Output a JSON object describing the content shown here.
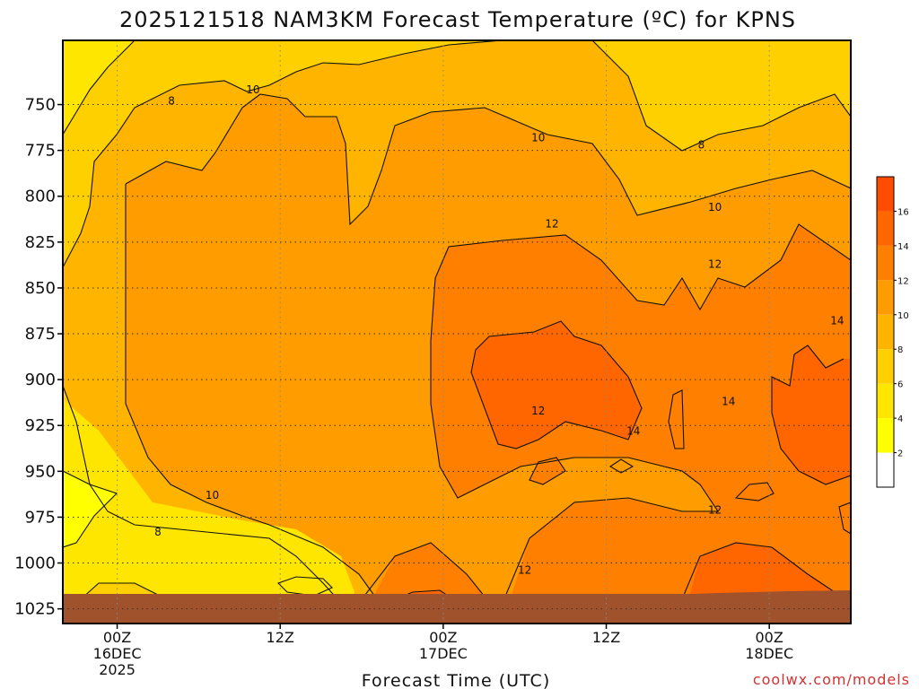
{
  "chart_data": {
    "type": "heatmap",
    "title": "2025121518 NAM3KM Forecast Temperature (ºC) for KPNS",
    "xlabel": "Forecast Time (UTC)",
    "ylabel": "",
    "credit": "coolwx.com/models",
    "x_range_hours": [
      -4,
      54
    ],
    "y_range_hPa": [
      715,
      1033
    ],
    "y_ticks": [
      750,
      775,
      800,
      825,
      850,
      875,
      900,
      925,
      950,
      975,
      1000,
      1025
    ],
    "x_ticks": [
      {
        "hour": 0,
        "lines": [
          "00Z",
          "16DEC",
          "2025"
        ]
      },
      {
        "hour": 12,
        "lines": [
          "12Z"
        ]
      },
      {
        "hour": 24,
        "lines": [
          "00Z",
          "17DEC"
        ]
      },
      {
        "hour": 36,
        "lines": [
          "12Z"
        ]
      },
      {
        "hour": 48,
        "lines": [
          "00Z",
          "18DEC"
        ]
      }
    ],
    "colorbar": {
      "tick_labels": [
        2,
        4,
        6,
        8,
        10,
        12,
        14,
        16
      ],
      "levels": [
        0,
        2,
        4,
        6,
        8,
        10,
        12,
        14,
        16,
        18
      ],
      "colors": [
        "#ffffff",
        "#ffff00",
        "#ffe600",
        "#ffd000",
        "#ffb400",
        "#ff9c00",
        "#ff8000",
        "#ff6600",
        "#ff4c00"
      ]
    },
    "contour_labels": [
      {
        "value": 8,
        "hour": 3,
        "hPa": 983
      },
      {
        "value": 8,
        "hour": 4,
        "hPa": 748
      },
      {
        "value": 10,
        "hour": 7,
        "hPa": 963
      },
      {
        "value": 10,
        "hour": 10,
        "hPa": 742
      },
      {
        "value": 10,
        "hour": 31,
        "hPa": 768
      },
      {
        "value": 8,
        "hour": 43,
        "hPa": 772
      },
      {
        "value": 10,
        "hour": 44,
        "hPa": 806
      },
      {
        "value": 12,
        "hour": 30,
        "hPa": 1004
      },
      {
        "value": 12,
        "hour": 31,
        "hPa": 917
      },
      {
        "value": 12,
        "hour": 32,
        "hPa": 815
      },
      {
        "value": 12,
        "hour": 44,
        "hPa": 837
      },
      {
        "value": 12,
        "hour": 44,
        "hPa": 971
      },
      {
        "value": 14,
        "hour": 38,
        "hPa": 928
      },
      {
        "value": 14,
        "hour": 45,
        "hPa": 912
      },
      {
        "value": 14,
        "hour": 53,
        "hPa": 868
      }
    ]
  }
}
